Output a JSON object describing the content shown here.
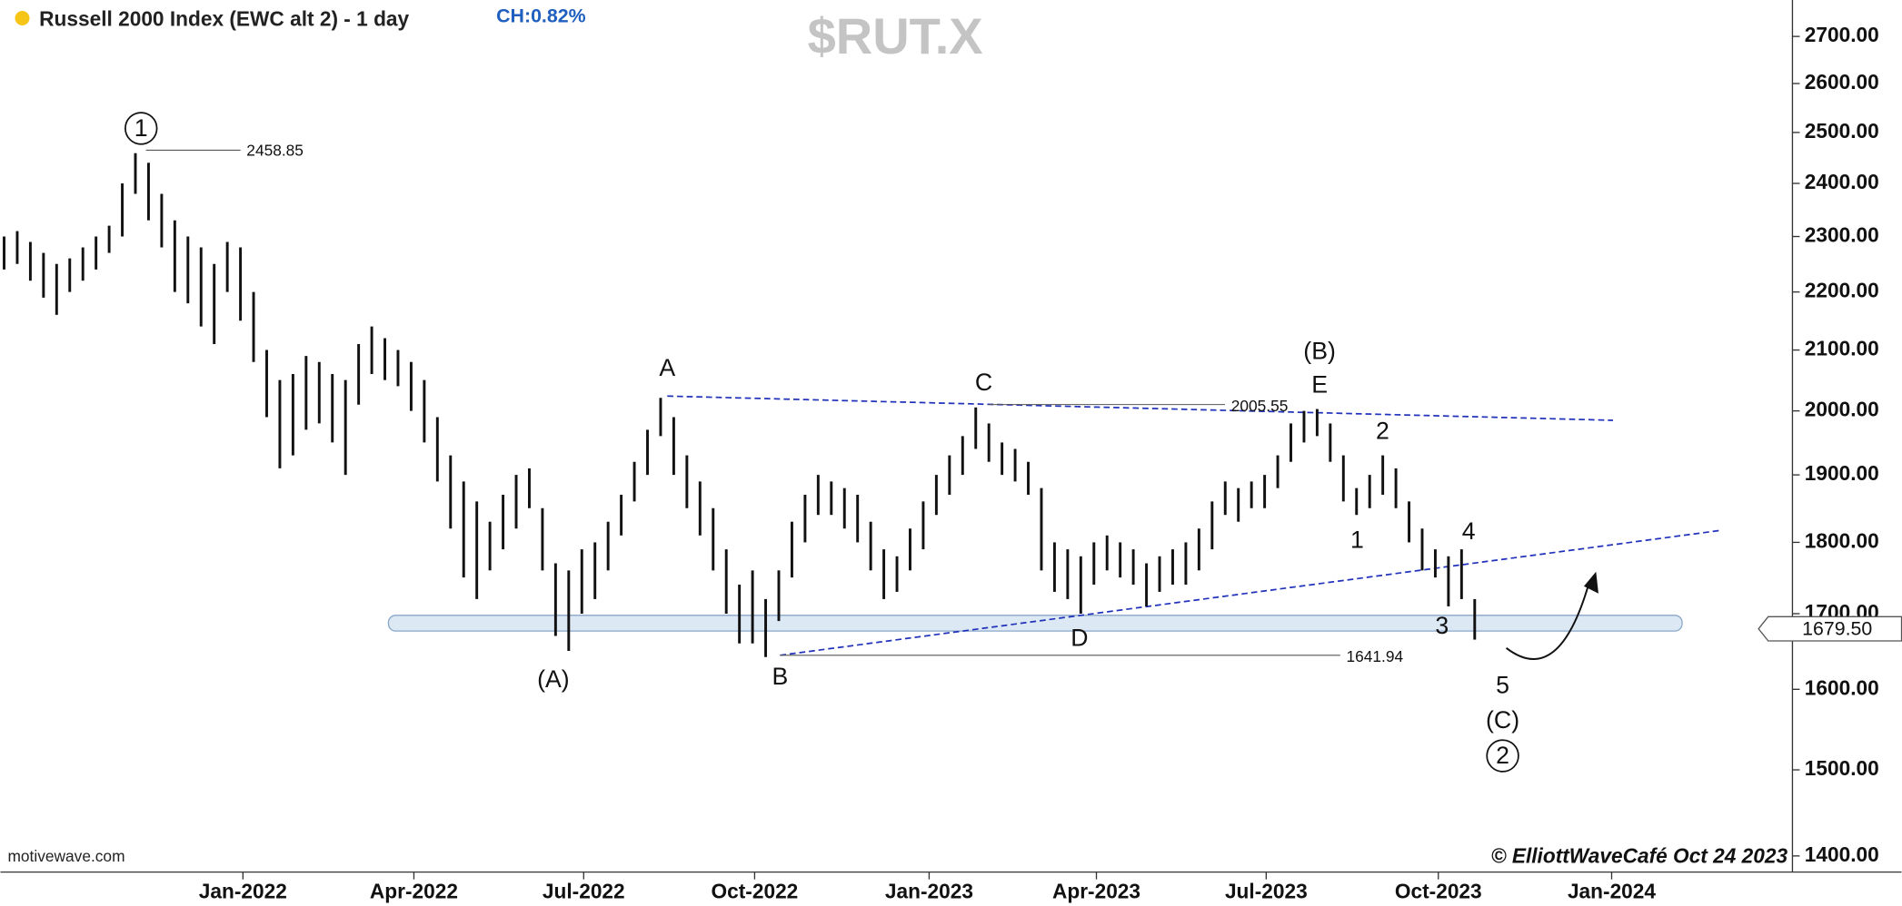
{
  "chart_data": {
    "type": "ohlc",
    "title": "Russell 2000 Index (EWC alt 2) - 1 day",
    "change": "CH:0.82%",
    "symbol": "$RUT.X",
    "source": "motivewave.com",
    "copyright": "© ElliottWaveCafé Oct 24 2023",
    "last_price": {
      "value": 1679.5,
      "label": "1679.50"
    },
    "log_scale": true,
    "color": "#111111",
    "categories": [
      null,
      null,
      null,
      null,
      null,
      null,
      null,
      null,
      null,
      null,
      null,
      null,
      null,
      null,
      null,
      null,
      null,
      null,
      null,
      null,
      null,
      null,
      null,
      null,
      null,
      null,
      null,
      null,
      null,
      null,
      null,
      null,
      null,
      null,
      null,
      null,
      null,
      null,
      null,
      null,
      null,
      null,
      null,
      null,
      null,
      null,
      null,
      null,
      null,
      null,
      null,
      null,
      null,
      null,
      null,
      null,
      null,
      null,
      null,
      null,
      null,
      null,
      null,
      null,
      null,
      null,
      null,
      null,
      null,
      null,
      null,
      null,
      null,
      null,
      null,
      null,
      null,
      null,
      null,
      null,
      null,
      null,
      null,
      null,
      null,
      null,
      null,
      null,
      null,
      null,
      null,
      null,
      null,
      null,
      null,
      null,
      null,
      null,
      null,
      null,
      null,
      null,
      null,
      null,
      null,
      null,
      null,
      null,
      null,
      null,
      null,
      null,
      null
    ],
    "high": [
      2300,
      2310,
      2290,
      2270,
      2250,
      2260,
      2280,
      2300,
      2320,
      2400,
      2458.85,
      2440,
      2380,
      2330,
      2300,
      2280,
      2250,
      2290,
      2280,
      2200,
      2100,
      2050,
      2060,
      2090,
      2080,
      2060,
      2050,
      2110,
      2140,
      2120,
      2100,
      2080,
      2050,
      1990,
      1930,
      1890,
      1860,
      1830,
      1870,
      1900,
      1910,
      1850,
      1770,
      1760,
      1790,
      1800,
      1830,
      1870,
      1920,
      1970,
      2021,
      1990,
      1930,
      1890,
      1850,
      1790,
      1740,
      1760,
      1720,
      1760,
      1830,
      1870,
      1900,
      1890,
      1880,
      1870,
      1830,
      1790,
      1780,
      1820,
      1860,
      1900,
      1930,
      1960,
      2005.55,
      1980,
      1950,
      1940,
      1920,
      1880,
      1800,
      1790,
      1780,
      1800,
      1810,
      1800,
      1790,
      1770,
      1780,
      1790,
      1800,
      1820,
      1860,
      1890,
      1880,
      1890,
      1900,
      1930,
      1980,
      2000,
      2003,
      1980,
      1930,
      1880,
      1900,
      1930,
      1910,
      1860,
      1820,
      1790,
      1780,
      1790,
      1720
    ],
    "low": [
      2240,
      2250,
      2220,
      2190,
      2160,
      2200,
      2220,
      2240,
      2270,
      2300,
      2380,
      2330,
      2280,
      2200,
      2180,
      2140,
      2110,
      2200,
      2150,
      2080,
      1990,
      1910,
      1930,
      1970,
      1980,
      1950,
      1900,
      2010,
      2060,
      2050,
      2040,
      2000,
      1950,
      1890,
      1820,
      1750,
      1720,
      1760,
      1790,
      1820,
      1850,
      1760,
      1670,
      1650,
      1700,
      1720,
      1760,
      1810,
      1860,
      1900,
      1960,
      1900,
      1850,
      1810,
      1760,
      1700,
      1660,
      1660,
      1641.94,
      1690,
      1750,
      1800,
      1840,
      1840,
      1820,
      1800,
      1760,
      1720,
      1730,
      1760,
      1790,
      1840,
      1870,
      1900,
      1940,
      1920,
      1900,
      1890,
      1870,
      1760,
      1730,
      1720,
      1700,
      1740,
      1760,
      1750,
      1740,
      1710,
      1730,
      1740,
      1740,
      1760,
      1790,
      1840,
      1830,
      1850,
      1850,
      1880,
      1920,
      1950,
      1960,
      1920,
      1860,
      1840,
      1850,
      1870,
      1850,
      1800,
      1760,
      1750,
      1710,
      1720,
      1665
    ],
    "xlim": [
      -0.28,
      136.2
    ],
    "xticks": [
      {
        "value": 18.19,
        "label": "Jan-2022"
      },
      {
        "value": 31.21,
        "label": "Apr-2022"
      },
      {
        "value": 44.14,
        "label": "Jul-2022"
      },
      {
        "value": 57.16,
        "label": "Oct-2022"
      },
      {
        "value": 70.45,
        "label": "Jan-2023"
      },
      {
        "value": 83.19,
        "label": "Apr-2023"
      },
      {
        "value": 96.12,
        "label": "Jul-2023"
      },
      {
        "value": 109.23,
        "label": "Oct-2023"
      },
      {
        "value": 122.43,
        "label": "Jan-2024"
      }
    ],
    "ylim": [
      1382,
      2780
    ],
    "yticks": [
      {
        "value": 1400,
        "label": "1400.00"
      },
      {
        "value": 1500,
        "label": "1500.00"
      },
      {
        "value": 1600,
        "label": "1600.00"
      },
      {
        "value": 1700,
        "label": "1700.00"
      },
      {
        "value": 1800,
        "label": "1800.00"
      },
      {
        "value": 1900,
        "label": "1900.00"
      },
      {
        "value": 2000,
        "label": "2000.00"
      },
      {
        "value": 2100,
        "label": "2100.00"
      },
      {
        "value": 2200,
        "label": "2200.00"
      },
      {
        "value": 2300,
        "label": "2300.00"
      },
      {
        "value": 2400,
        "label": "2400.00"
      },
      {
        "value": 2500,
        "label": "2500.00"
      },
      {
        "value": 2600,
        "label": "2600.00"
      },
      {
        "value": 2700,
        "label": "2700.00"
      }
    ],
    "annotations": [
      "1",
      "2458.85",
      "A",
      "(A)",
      "B",
      "C",
      "2005.55",
      "D",
      "(B)",
      "E",
      "2",
      "1",
      "4",
      "3",
      "5",
      "(C)",
      "2",
      "1641.94"
    ]
  }
}
